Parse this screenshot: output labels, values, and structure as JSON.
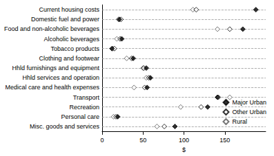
{
  "chart_data": {
    "type": "scatter",
    "orientation": "horizontal",
    "x_label": "$",
    "categories": [
      "Current housing costs",
      "Domestic fuel and power",
      "Food and non-alcoholic beverages",
      "Alcoholic beverages",
      "Tobacco products",
      "Clothing and footwear",
      "Hhld furnishings and equipment",
      "Hhld services and operation",
      "Medical care and health expenses",
      "Transport",
      "Recreation",
      "Personal care",
      "Misc. goods and services"
    ],
    "series": [
      {
        "name": "Major Urban",
        "color": "#000000",
        "marker": "diamond",
        "values": [
          188,
          21,
          172,
          24,
          12,
          38,
          54,
          59,
          55,
          141,
          129,
          19,
          89
        ]
      },
      {
        "name": "Other Urban",
        "color": "#000000",
        "marker": "diamond_open",
        "values": [
          115,
          23,
          156,
          22,
          15,
          36,
          51,
          57,
          52,
          142,
          121,
          17,
          76
        ]
      },
      {
        "name": "Rural",
        "color": "#555555",
        "marker": "diamond_open",
        "values": [
          111,
          20,
          141,
          18,
          13,
          30,
          50,
          54,
          39,
          156,
          96,
          14,
          67
        ]
      }
    ],
    "xlim": [
      0,
      200
    ],
    "xticks": [
      0,
      50,
      100,
      150
    ],
    "grid": true,
    "legend": "lower right"
  }
}
